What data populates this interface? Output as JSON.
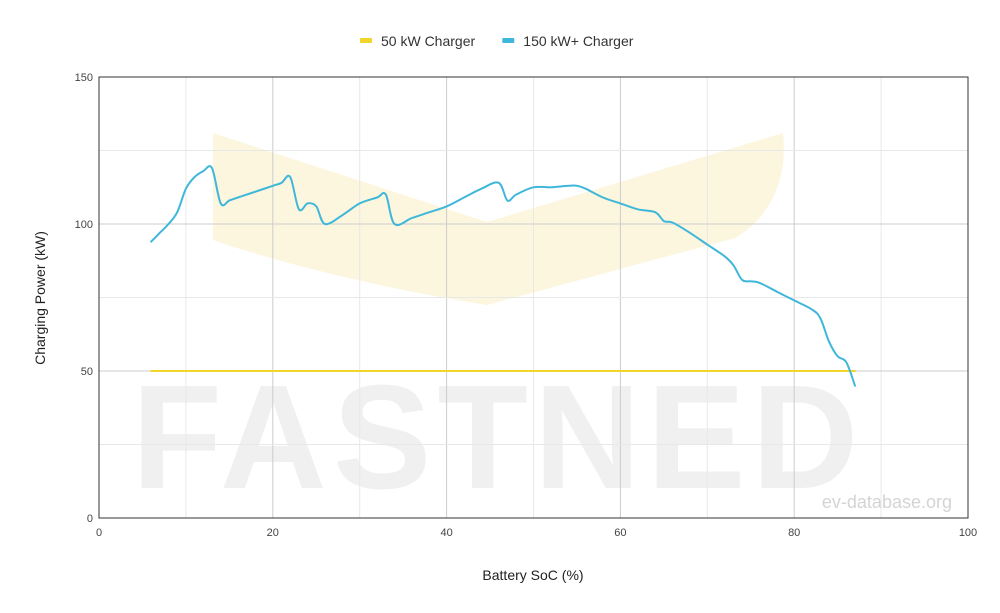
{
  "chart_data": {
    "type": "line",
    "xlabel": "Battery SoC (%)",
    "ylabel": "Charging Power (kW)",
    "xlim": [
      0,
      100
    ],
    "ylim": [
      0,
      150
    ],
    "x_ticks": [
      0,
      20,
      40,
      60,
      80,
      100
    ],
    "y_ticks": [
      0,
      50,
      100,
      150
    ],
    "grid": true,
    "legend_position": "top-center",
    "series": [
      {
        "name": "50 kW Charger",
        "color": "#f2d52a",
        "x": [
          6,
          87
        ],
        "y": [
          50,
          50
        ]
      },
      {
        "name": "150 kW+ Charger",
        "color": "#3fb7da",
        "x": [
          6,
          7,
          8,
          9,
          10,
          11,
          12,
          13,
          14,
          15,
          16,
          18,
          20,
          21,
          22,
          23,
          24,
          25,
          26,
          28,
          30,
          32,
          33,
          34,
          36,
          38,
          40,
          42,
          44,
          46,
          47,
          48,
          50,
          52,
          54,
          55,
          56,
          58,
          60,
          62,
          64,
          65,
          66,
          68,
          70,
          72,
          73,
          74,
          75,
          76,
          78,
          80,
          82,
          83,
          84,
          85,
          86,
          87
        ],
        "y": [
          94,
          97,
          100,
          104,
          112,
          116,
          118,
          119,
          107,
          108,
          109,
          111,
          113,
          114,
          116,
          105,
          107,
          106,
          100,
          103,
          107,
          109,
          110,
          100,
          102,
          104,
          106,
          109,
          112,
          114,
          108,
          110,
          112.5,
          112.5,
          113,
          113,
          112,
          109,
          107,
          105,
          104,
          101,
          100.5,
          97,
          93,
          89,
          86,
          81,
          80.5,
          80,
          77,
          74,
          71,
          68,
          60,
          55,
          53,
          45
        ]
      }
    ]
  },
  "watermark": {
    "brand": "FASTNED",
    "credit": "ev-database.org"
  }
}
